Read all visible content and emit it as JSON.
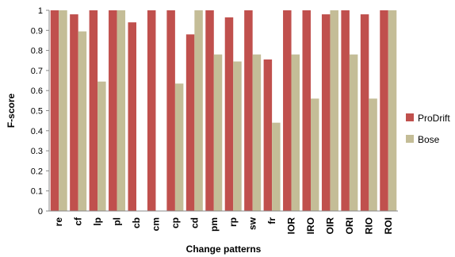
{
  "chart_data": {
    "type": "bar",
    "title": "",
    "xlabel": "Change patterns",
    "ylabel": "F-score",
    "ylim": [
      0,
      1
    ],
    "yticks": [
      "0",
      "0.1",
      "0.2",
      "0.3",
      "0.4",
      "0.5",
      "0.6",
      "0.7",
      "0.8",
      "0.9",
      "1"
    ],
    "grid": false,
    "legend": "right",
    "categories": [
      "re",
      "cf",
      "lp",
      "pl",
      "cb",
      "cm",
      "cp",
      "cd",
      "pm",
      "rp",
      "sw",
      "fr",
      "IOR",
      "IRO",
      "OIR",
      "ORI",
      "RIO",
      "ROI"
    ],
    "series": [
      {
        "name": "ProDrift",
        "color": "#C0504D",
        "values": [
          1.0,
          0.98,
          1.0,
          1.0,
          0.94,
          1.0,
          1.0,
          0.88,
          1.0,
          0.965,
          1.0,
          0.755,
          1.0,
          1.0,
          0.98,
          1.0,
          0.98,
          1.0
        ]
      },
      {
        "name": "Bose",
        "color": "#C4BD97",
        "values": [
          1.0,
          0.895,
          0.645,
          1.0,
          0.0,
          0.0,
          0.635,
          1.0,
          0.78,
          0.745,
          0.78,
          0.44,
          0.78,
          0.56,
          1.0,
          0.78,
          0.56,
          1.0
        ]
      }
    ]
  }
}
